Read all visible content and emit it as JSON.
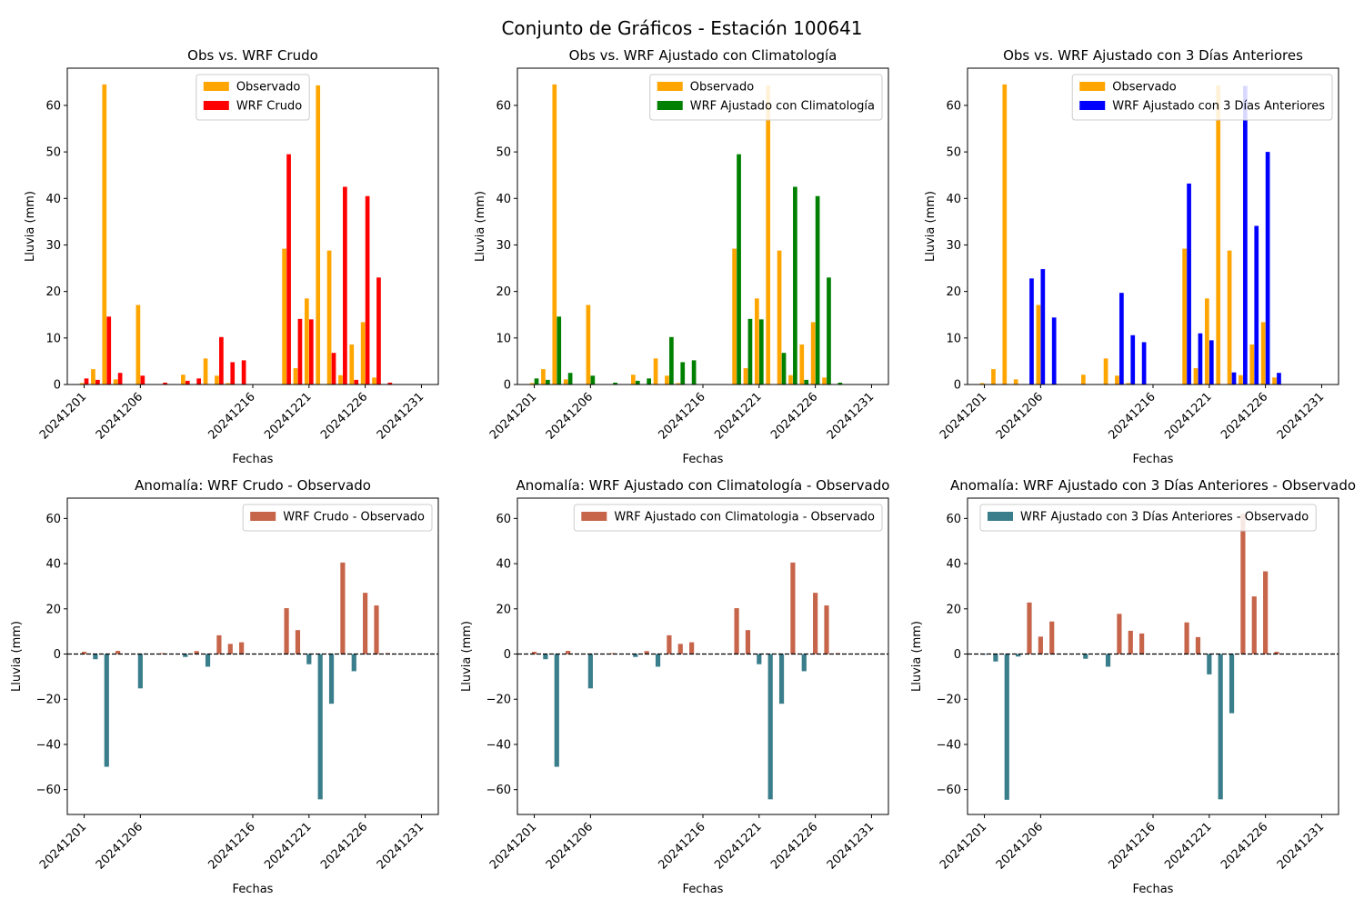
{
  "suptitle": "Conjunto de Gráficos - Estación 100641",
  "colors": {
    "observado": "#ffa500",
    "wrf_crudo": "#ff0000",
    "wrf_clim": "#008000",
    "wrf_3dias": "#0000ff",
    "anom_pos": "#c7654b",
    "anom_neg": "#3a7e8c"
  },
  "chart_data": [
    {
      "type": "bar",
      "title": "Obs vs. WRF Crudo",
      "xlabel": "Fechas",
      "ylabel": "Lluvia (mm)",
      "x": [
        "20241201",
        "20241202",
        "20241203",
        "20241204",
        "20241205",
        "20241206",
        "20241207",
        "20241208",
        "20241209",
        "20241210",
        "20241211",
        "20241212",
        "20241213",
        "20241214",
        "20241215",
        "20241216",
        "20241217",
        "20241218",
        "20241219",
        "20241220",
        "20241221",
        "20241222",
        "20241223",
        "20241224",
        "20241225",
        "20241226",
        "20241227",
        "20241228",
        "20241229",
        "20241230"
      ],
      "xticks": [
        "20241201",
        "20241206",
        "20241216",
        "20241221",
        "20241226",
        "20241231"
      ],
      "ylim": [
        0,
        68
      ],
      "yticks": [
        0,
        10,
        20,
        30,
        40,
        50,
        60
      ],
      "legend": "upper center",
      "series": [
        {
          "name": "Observado",
          "color_key": "observado",
          "values": [
            0.3,
            3.3,
            64.5,
            1.1,
            0,
            17.1,
            0,
            0,
            0,
            2.1,
            0,
            5.6,
            1.9,
            0.3,
            0,
            0,
            0,
            0,
            29.2,
            3.5,
            18.5,
            64.3,
            28.8,
            2.0,
            8.6,
            13.4,
            1.5,
            0,
            0,
            0
          ]
        },
        {
          "name": "WRF Crudo",
          "color_key": "wrf_crudo",
          "values": [
            1.3,
            1.0,
            14.6,
            2.5,
            0,
            1.9,
            0,
            0.4,
            0,
            0.8,
            1.3,
            0,
            10.2,
            4.8,
            5.2,
            0,
            0,
            0,
            49.5,
            14.1,
            14.0,
            0,
            6.8,
            42.5,
            1.0,
            40.5,
            23.0,
            0.4,
            0,
            0
          ]
        }
      ]
    },
    {
      "type": "bar",
      "title": "Obs vs. WRF Ajustado con Climatología",
      "xlabel": "Fechas",
      "ylabel": "Lluvia (mm)",
      "x": [
        "20241201",
        "20241202",
        "20241203",
        "20241204",
        "20241205",
        "20241206",
        "20241207",
        "20241208",
        "20241209",
        "20241210",
        "20241211",
        "20241212",
        "20241213",
        "20241214",
        "20241215",
        "20241216",
        "20241217",
        "20241218",
        "20241219",
        "20241220",
        "20241221",
        "20241222",
        "20241223",
        "20241224",
        "20241225",
        "20241226",
        "20241227",
        "20241228",
        "20241229",
        "20241230"
      ],
      "xticks": [
        "20241201",
        "20241206",
        "20241216",
        "20241221",
        "20241226",
        "20241231"
      ],
      "ylim": [
        0,
        68
      ],
      "yticks": [
        0,
        10,
        20,
        30,
        40,
        50,
        60
      ],
      "legend": "upper right",
      "series": [
        {
          "name": "Observado",
          "color_key": "observado",
          "values": [
            0.3,
            3.3,
            64.5,
            1.1,
            0,
            17.1,
            0,
            0,
            0,
            2.1,
            0,
            5.6,
            1.9,
            0.3,
            0,
            0,
            0,
            0,
            29.2,
            3.5,
            18.5,
            64.3,
            28.8,
            2.0,
            8.6,
            13.4,
            1.5,
            0,
            0,
            0
          ]
        },
        {
          "name": "WRF Ajustado con Climatología",
          "color_key": "wrf_clim",
          "values": [
            1.3,
            1.0,
            14.6,
            2.5,
            0,
            1.9,
            0,
            0.4,
            0,
            0.8,
            1.3,
            0,
            10.2,
            4.8,
            5.2,
            0,
            0,
            0,
            49.5,
            14.1,
            14.0,
            0,
            6.8,
            42.5,
            1.0,
            40.5,
            23.0,
            0.4,
            0,
            0
          ]
        }
      ]
    },
    {
      "type": "bar",
      "title": "Obs vs. WRF Ajustado con 3 Días Anteriores",
      "xlabel": "Fechas",
      "ylabel": "Lluvia (mm)",
      "x": [
        "20241201",
        "20241202",
        "20241203",
        "20241204",
        "20241205",
        "20241206",
        "20241207",
        "20241208",
        "20241209",
        "20241210",
        "20241211",
        "20241212",
        "20241213",
        "20241214",
        "20241215",
        "20241216",
        "20241217",
        "20241218",
        "20241219",
        "20241220",
        "20241221",
        "20241222",
        "20241223",
        "20241224",
        "20241225",
        "20241226",
        "20241227",
        "20241228",
        "20241229",
        "20241230"
      ],
      "xticks": [
        "20241201",
        "20241206",
        "20241216",
        "20241221",
        "20241226",
        "20241231"
      ],
      "ylim": [
        0,
        68
      ],
      "yticks": [
        0,
        10,
        20,
        30,
        40,
        50,
        60
      ],
      "legend": "upper right",
      "series": [
        {
          "name": "Observado",
          "color_key": "observado",
          "values": [
            0.3,
            3.3,
            64.5,
            1.1,
            0,
            17.1,
            0,
            0,
            0,
            2.1,
            0,
            5.6,
            1.9,
            0.3,
            0,
            0,
            0,
            0,
            29.2,
            3.5,
            18.5,
            64.3,
            28.8,
            2.0,
            8.6,
            13.4,
            1.5,
            0,
            0,
            0
          ]
        },
        {
          "name": "WRF Ajustado con 3 Días Anteriores",
          "color_key": "wrf_3dias",
          "values": [
            0,
            0,
            0,
            0,
            22.8,
            24.8,
            14.4,
            0,
            0,
            0,
            0,
            0,
            19.7,
            10.6,
            9.1,
            0,
            0,
            0,
            43.2,
            11.0,
            9.5,
            0,
            2.6,
            64.2,
            34.1,
            50.0,
            2.5,
            0,
            0,
            0
          ]
        }
      ]
    },
    {
      "type": "bar",
      "title": "Anomalía: WRF Crudo - Observado",
      "xlabel": "Fechas",
      "ylabel": "Lluvia (mm)",
      "x": [
        "20241201",
        "20241202",
        "20241203",
        "20241204",
        "20241205",
        "20241206",
        "20241207",
        "20241208",
        "20241209",
        "20241210",
        "20241211",
        "20241212",
        "20241213",
        "20241214",
        "20241215",
        "20241216",
        "20241217",
        "20241218",
        "20241219",
        "20241220",
        "20241221",
        "20241222",
        "20241223",
        "20241224",
        "20241225",
        "20241226",
        "20241227",
        "20241228",
        "20241229",
        "20241230"
      ],
      "xticks": [
        "20241201",
        "20241206",
        "20241216",
        "20241221",
        "20241226",
        "20241231"
      ],
      "ylim": [
        -71,
        69
      ],
      "yticks": [
        -60,
        -40,
        -20,
        0,
        20,
        40,
        60
      ],
      "zero_line": "dashed",
      "legend": "upper right",
      "legend_color_key": "anom_pos",
      "series": [
        {
          "name": "WRF Crudo - Observado",
          "values": [
            1.0,
            -2.3,
            -49.9,
            1.4,
            0,
            -15.2,
            0,
            0.4,
            0,
            -1.3,
            1.3,
            -5.6,
            8.3,
            4.5,
            5.2,
            0,
            0,
            0,
            20.3,
            10.6,
            -4.5,
            -64.3,
            -22.0,
            40.5,
            -7.6,
            27.1,
            21.5,
            0.4,
            0,
            0
          ]
        }
      ]
    },
    {
      "type": "bar",
      "title": "Anomalía: WRF Ajustado con Climatología - Observado",
      "xlabel": "Fechas",
      "ylabel": "Lluvia (mm)",
      "x": [
        "20241201",
        "20241202",
        "20241203",
        "20241204",
        "20241205",
        "20241206",
        "20241207",
        "20241208",
        "20241209",
        "20241210",
        "20241211",
        "20241212",
        "20241213",
        "20241214",
        "20241215",
        "20241216",
        "20241217",
        "20241218",
        "20241219",
        "20241220",
        "20241221",
        "20241222",
        "20241223",
        "20241224",
        "20241225",
        "20241226",
        "20241227",
        "20241228",
        "20241229",
        "20241230"
      ],
      "xticks": [
        "20241201",
        "20241206",
        "20241216",
        "20241221",
        "20241226",
        "20241231"
      ],
      "ylim": [
        -71,
        69
      ],
      "yticks": [
        -60,
        -40,
        -20,
        0,
        20,
        40,
        60
      ],
      "zero_line": "dashed",
      "legend": "upper right",
      "legend_color_key": "anom_pos",
      "series": [
        {
          "name": "WRF Ajustado con Climatologia - Observado",
          "values": [
            1.0,
            -2.3,
            -49.9,
            1.4,
            0,
            -15.2,
            0,
            0.4,
            0,
            -1.3,
            1.3,
            -5.6,
            8.3,
            4.5,
            5.2,
            0,
            0,
            0,
            20.3,
            10.6,
            -4.5,
            -64.3,
            -22.0,
            40.5,
            -7.6,
            27.1,
            21.5,
            0.4,
            0,
            0
          ]
        }
      ]
    },
    {
      "type": "bar",
      "title": "Anomalía: WRF Ajustado con 3 Días Anteriores - Observado",
      "xlabel": "Fechas",
      "ylabel": "Lluvia (mm)",
      "x": [
        "20241201",
        "20241202",
        "20241203",
        "20241204",
        "20241205",
        "20241206",
        "20241207",
        "20241208",
        "20241209",
        "20241210",
        "20241211",
        "20241212",
        "20241213",
        "20241214",
        "20241215",
        "20241216",
        "20241217",
        "20241218",
        "20241219",
        "20241220",
        "20241221",
        "20241222",
        "20241223",
        "20241224",
        "20241225",
        "20241226",
        "20241227",
        "20241228",
        "20241229",
        "20241230"
      ],
      "xticks": [
        "20241201",
        "20241206",
        "20241216",
        "20241221",
        "20241226",
        "20241231"
      ],
      "ylim": [
        -71,
        69
      ],
      "yticks": [
        -60,
        -40,
        -20,
        0,
        20,
        40,
        60
      ],
      "zero_line": "dashed",
      "legend": "upper left",
      "legend_color_key": "anom_neg",
      "series": [
        {
          "name": "WRF Ajustado con 3 Días Anteriores - Observado",
          "values": [
            -0.3,
            -3.3,
            -64.5,
            -1.1,
            22.8,
            7.7,
            14.4,
            0,
            0,
            -2.1,
            0,
            -5.6,
            17.8,
            10.3,
            9.1,
            0,
            0,
            0,
            14.0,
            7.5,
            -9.0,
            -64.3,
            -26.2,
            62.2,
            25.5,
            36.6,
            1.0,
            0,
            0,
            0
          ]
        }
      ]
    }
  ]
}
